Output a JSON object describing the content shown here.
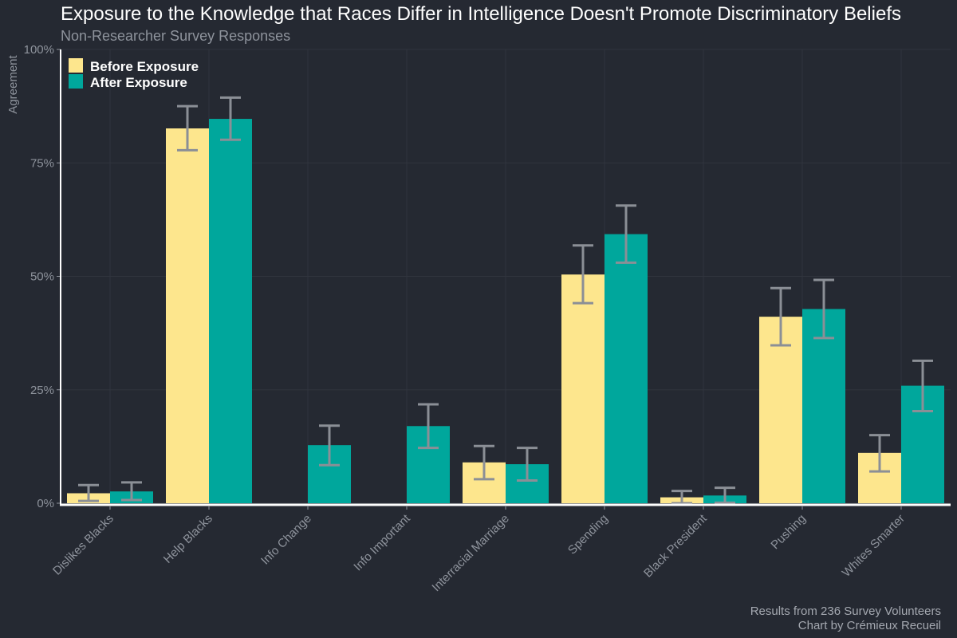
{
  "chart_data": {
    "type": "bar",
    "title": "Exposure to the Knowledge that Races Differ in Intelligence Doesn't Promote Discriminatory Beliefs",
    "subtitle": "Non-Researcher Survey Responses",
    "ylabel": "Agreement",
    "xlabel": "",
    "ylim": [
      0,
      100
    ],
    "yticks": [
      0,
      25,
      50,
      75,
      100
    ],
    "ytick_labels": [
      "0%",
      "25%",
      "50%",
      "75%",
      "100%"
    ],
    "categories": [
      "Dislikes Blacks",
      "Help Blacks",
      "Info Change",
      "Info Important",
      "Interracial Marriage",
      "Spending",
      "Black President",
      "Pushing",
      "Whites Smarter"
    ],
    "series": [
      {
        "name": "Before Exposure",
        "color": "#fde68d",
        "values": [
          2.2,
          82.6,
          null,
          null,
          9.0,
          50.4,
          1.3,
          41.1,
          11.1
        ],
        "err_low": [
          0.5,
          77.8,
          null,
          null,
          5.3,
          44.1,
          0.0,
          34.8,
          7.0
        ],
        "err_high": [
          4.0,
          87.5,
          null,
          null,
          12.6,
          56.8,
          2.7,
          47.4,
          15.0
        ]
      },
      {
        "name": "After Exposure",
        "color": "#00a79c",
        "values": [
          2.6,
          84.7,
          12.8,
          17.0,
          8.6,
          59.3,
          1.7,
          42.8,
          25.9
        ],
        "err_low": [
          0.7,
          80.1,
          8.4,
          12.2,
          5.0,
          53.0,
          0.1,
          36.4,
          20.3
        ],
        "err_high": [
          4.6,
          89.4,
          17.1,
          21.8,
          12.2,
          65.6,
          3.4,
          49.2,
          31.4
        ]
      }
    ],
    "legend_position": "top-left",
    "grid": true,
    "caption_lines": [
      "Results from 236 Survey Volunteers",
      "Chart by Crémieux Recueil"
    ],
    "colors": {
      "background": "#252932",
      "grid": "#30343d",
      "axis": "#ffffff",
      "error_bar": "#8b8f96"
    }
  }
}
